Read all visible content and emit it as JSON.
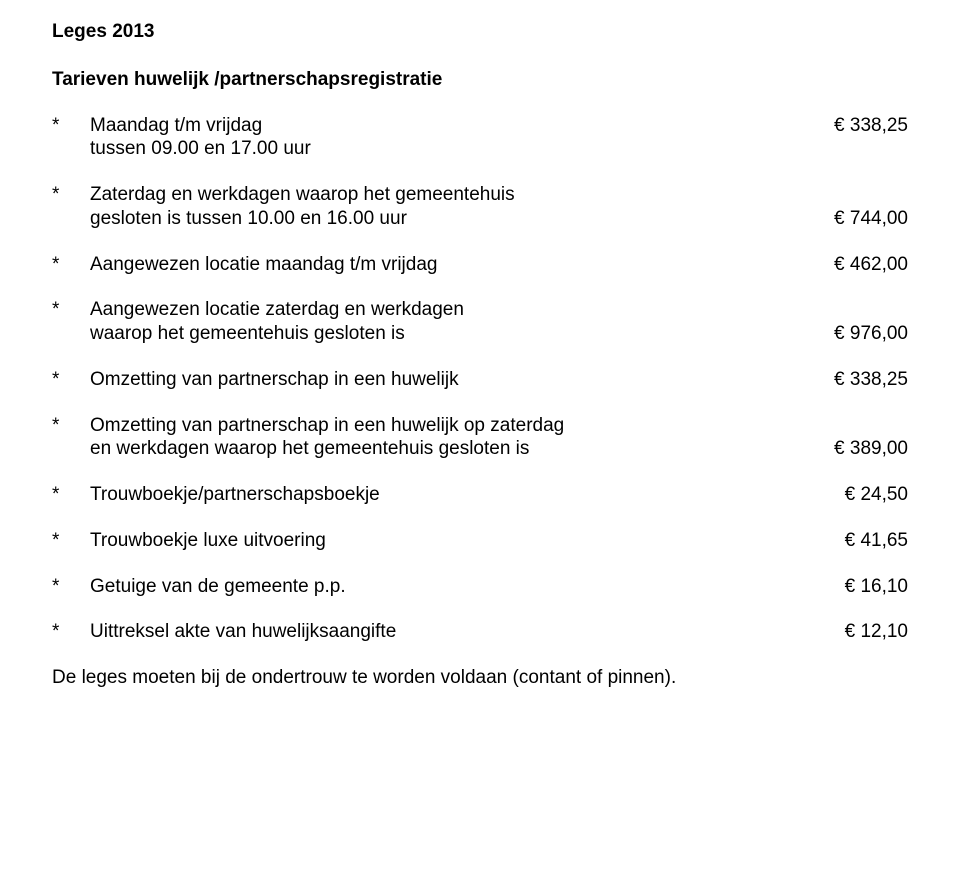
{
  "page": {
    "title": "Leges 2013",
    "section_heading": "Tarieven huwelijk /partnerschapsregistratie",
    "bullet_char": "*",
    "footer": "De leges moeten bij de ondertrouw te worden voldaan (contant of pinnen).",
    "text_color": "#000000",
    "background_color": "#ffffff",
    "font_family": "Verdana",
    "font_size_pt": 14
  },
  "items": [
    {
      "lines": [
        "Maandag t/m vrijdag",
        "tussen 09.00 en 17.00 uur"
      ],
      "price": "€ 338,25",
      "price_line": 0
    },
    {
      "lines": [
        "Zaterdag en werkdagen waarop het gemeentehuis",
        "gesloten is tussen 10.00 en 16.00 uur"
      ],
      "price": "€ 744,00",
      "price_line": 1
    },
    {
      "lines": [
        "Aangewezen locatie maandag t/m vrijdag"
      ],
      "price": "€ 462,00",
      "price_line": 0
    },
    {
      "lines": [
        "Aangewezen locatie zaterdag en werkdagen",
        "waarop het gemeentehuis gesloten is"
      ],
      "price": "€ 976,00",
      "price_line": 1
    },
    {
      "lines": [
        "Omzetting van partnerschap in een huwelijk"
      ],
      "price": "€ 338,25",
      "price_line": 0
    },
    {
      "lines": [
        "Omzetting van partnerschap in een huwelijk op zaterdag",
        "en werkdagen waarop het gemeentehuis gesloten is"
      ],
      "price": "€ 389,00",
      "price_line": 1
    },
    {
      "lines": [
        "Trouwboekje/partnerschapsboekje"
      ],
      "price": "€ 24,50",
      "price_line": 0
    },
    {
      "lines": [
        "Trouwboekje luxe uitvoering"
      ],
      "price": "€ 41,65",
      "price_line": 0
    },
    {
      "lines": [
        "Getuige van de gemeente p.p."
      ],
      "price": "€ 16,10",
      "price_line": 0
    },
    {
      "lines": [
        "Uittreksel akte van huwelijksaangifte"
      ],
      "price": "€ 12,10",
      "price_line": 0
    }
  ]
}
